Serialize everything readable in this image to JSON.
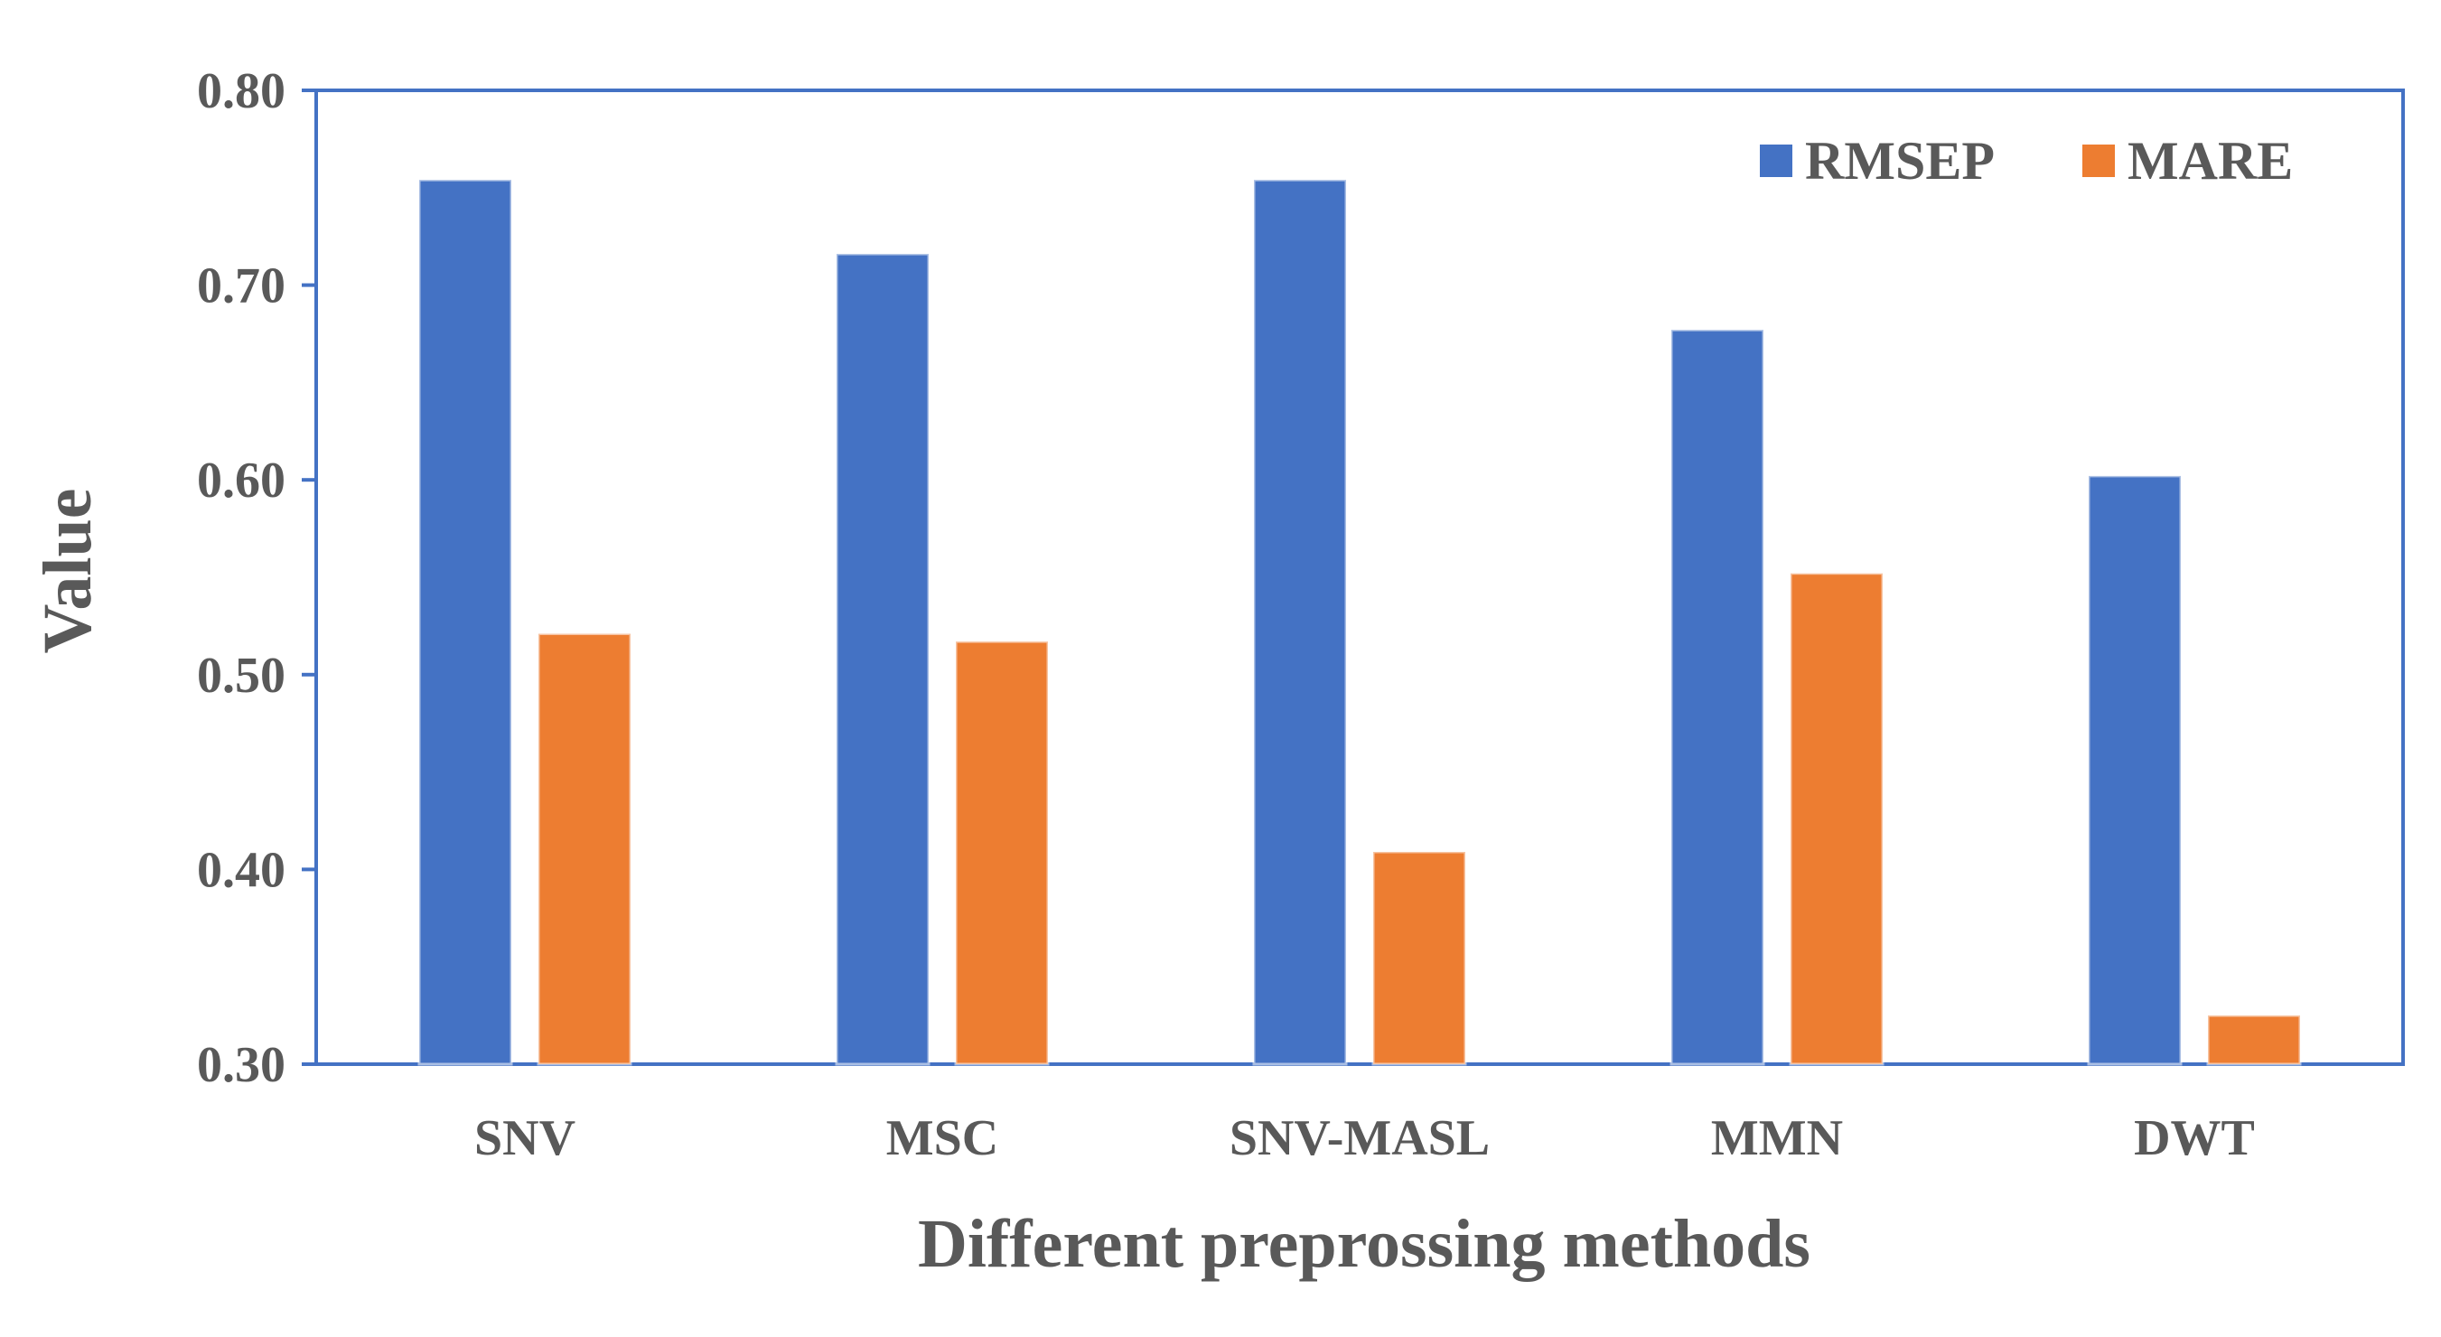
{
  "chart_data": {
    "type": "bar",
    "categories": [
      "SNV",
      "MSC",
      "SNV-MASL",
      "MMN",
      "DWT"
    ],
    "series": [
      {
        "name": "RMSEP",
        "color": "#4472C4",
        "values": [
          0.754,
          0.716,
          0.754,
          0.677,
          0.602
        ]
      },
      {
        "name": "MARE",
        "color": "#ED7D31",
        "values": [
          0.521,
          0.517,
          0.409,
          0.552,
          0.325
        ]
      }
    ],
    "title": "",
    "xlabel": "Different preprossing methods",
    "ylabel": "Value",
    "ylim": [
      0.3,
      0.8
    ],
    "yticks": [
      "0.30",
      "0.40",
      "0.50",
      "0.60",
      "0.70",
      "0.80"
    ],
    "grid": false,
    "legend_position": "top-right",
    "frame_color": "#4472C4"
  }
}
